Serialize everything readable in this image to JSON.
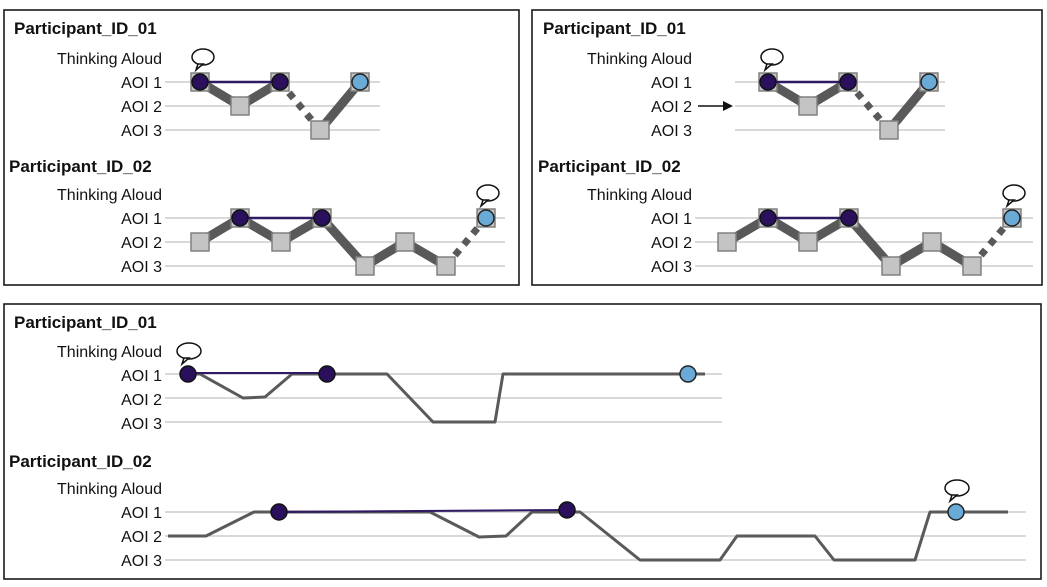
{
  "panels": [
    {
      "participants": [
        {
          "id": "Participant_ID_01",
          "labels": [
            "Thinking Aloud",
            "AOI 1",
            "AOI 2",
            "AOI 3"
          ]
        },
        {
          "id": "Participant_ID_02",
          "labels": [
            "Thinking Aloud",
            "AOI 1",
            "AOI 2",
            "AOI 3"
          ]
        }
      ]
    },
    {
      "participants": [
        {
          "id": "Participant_ID_01",
          "labels": [
            "Thinking Aloud",
            "AOI 1",
            "AOI 2",
            "AOI 3"
          ]
        },
        {
          "id": "Participant_ID_02",
          "labels": [
            "Thinking Aloud",
            "AOI 1",
            "AOI 2",
            "AOI 3"
          ]
        }
      ]
    },
    {
      "participants": [
        {
          "id": "Participant_ID_01",
          "labels": [
            "Thinking Aloud",
            "AOI 1",
            "AOI 2",
            "AOI 3"
          ]
        },
        {
          "id": "Participant_ID_02",
          "labels": [
            "Thinking Aloud",
            "AOI 1",
            "AOI 2",
            "AOI 3"
          ]
        }
      ]
    }
  ],
  "colors": {
    "line": "#595959",
    "aoi_box": "#c4c4c4",
    "fixation_dark": "#2a0f5c",
    "fixation_light": "#6aaad6",
    "connector": "#2f1a63",
    "gridline": "#b3b3b3"
  },
  "icons": {
    "thinking_aloud": "speech-bubble-icon",
    "marker": "arrow-right-icon"
  }
}
